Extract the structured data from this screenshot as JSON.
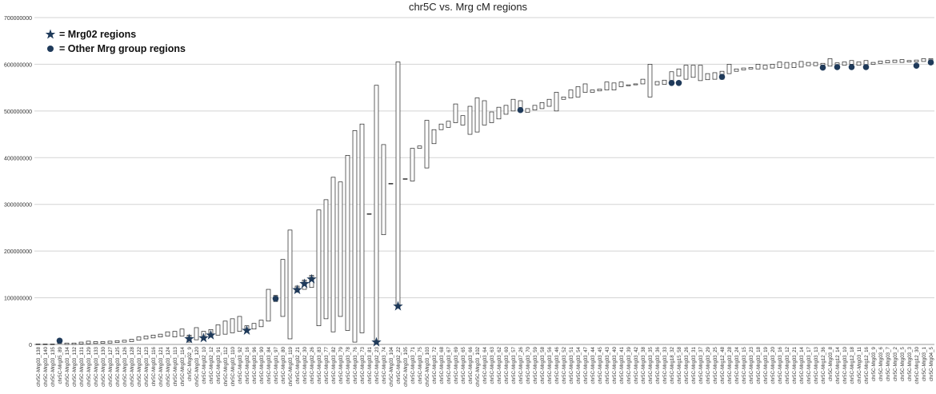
{
  "chart_data": {
    "type": "range",
    "title": "chr5C vs. Mrg cM regions",
    "xlabel": "",
    "ylabel": "",
    "ylim": [
      0,
      700000000
    ],
    "y_ticks": [
      "0",
      "100000000",
      "200000000",
      "300000000",
      "400000000",
      "500000000",
      "600000000",
      "700000000"
    ],
    "grid": true,
    "legend_position": "top-left",
    "legend": [
      {
        "marker": "star",
        "label": "= Mrg02 regions",
        "color": "#1f3a5a"
      },
      {
        "marker": "dot",
        "label": "= Other Mrg group regions",
        "color": "#1f3a5a"
      }
    ],
    "categories": [
      "chr5C-Mrg03_138",
      "chr5C-Mrg03_140",
      "chr5C-Mrg03_135",
      "chr5C-Mrg05_89",
      "chr5C-Mrg03_134",
      "chr5C-Mrg03_132",
      "chr5C-Mrg03_131",
      "chr5C-Mrg03_129",
      "chr5C-Mrg03_133",
      "chr5C-Mrg03_130",
      "chr5C-Mrg03_127",
      "chr5C-Mrg03_125",
      "chr5C-Mrg03_126",
      "chr5C-Mrg03_128",
      "chr5C-Mrg03_122",
      "chr5C-Mrg03_123",
      "chr5C-Mrg03_116",
      "chr5C-Mrg03_121",
      "chr5C-Mrg03_124",
      "chr5C-Mrg03_113",
      "chr5C-Mrg03_114",
      "chr5C-Mrg02_9",
      "chr5C-Mrg03_120",
      "chr5C-Mrg02_10",
      "chr5C-Mrg02_12",
      "chr5C-Mrg03_91",
      "chr5C-Mrg03_112",
      "chr5C-Mrg03_110",
      "chr5C-Mrg03_92",
      "chr5C-Mrg02_16",
      "chr5C-Mrg03_96",
      "chr5C-Mrg03_90",
      "chr5C-Mrg03_84",
      "chr5C-Mrg01_97",
      "chr5C-Mrg03_80",
      "chr5C-Mrg03_119",
      "chr5C-Mrg02_21",
      "chr5C-Mrg02_30",
      "chr5C-Mrg02_26",
      "chr5C-Mrg03_83",
      "chr5C-Mrg03_77",
      "chr5C-Mrg03_82",
      "chr5C-Mrg03_79",
      "chr5C-Mrg03_78",
      "chr5C-Mrg03_76",
      "chr5C-Mrg03_73",
      "chr5C-Mrg03_81",
      "chr5C-Mrg02_23",
      "chr5C-Mrg03_74",
      "chr5C-Mrg03_104",
      "chr5C-Mrg02_22",
      "chr5C-Mrg03_105",
      "chr5C-Mrg03_71",
      "chr5C-Mrg03_75",
      "chr5C-Mrg03_103",
      "chr5C-Mrg03_72",
      "chr5C-Mrg03_68",
      "chr5C-Mrg03_67",
      "chr5C-Mrg03_69",
      "chr5C-Mrg03_65",
      "chr5C-Mrg03_66",
      "chr5C-Mrg03_102",
      "chr5C-Mrg03_64",
      "chr5C-Mrg03_63",
      "chr5C-Mrg03_62",
      "chr5C-Mrg03_60",
      "chr5C-Mrg03_57",
      "chr5C-Mrg07_26",
      "chr5C-Mrg03_70",
      "chr5C-Mrg03_59",
      "chr5C-Mrg03_58",
      "chr5C-Mrg03_56",
      "chr5C-Mrg03_46",
      "chr5C-Mrg03_52",
      "chr5C-Mrg03_51",
      "chr5C-Mrg03_54",
      "chr5C-Mrg03_47",
      "chr5C-Mrg03_44",
      "chr5C-Mrg03_45",
      "chr5C-Mrg03_43",
      "chr5C-Mrg03_40",
      "chr5C-Mrg03_41",
      "chr5C-Mrg03_39",
      "chr5C-Mrg03_42",
      "chr5C-Mrg03_38",
      "chr5C-Mrg03_35",
      "chr5C-Mrg03_36",
      "chr5C-Mrg03_33",
      "chr5C-Mrg18_32",
      "chr5C-Mrg15_58",
      "chr5C-Mrg03_26",
      "chr5C-Mrg03_31",
      "chr5C-Mrg03_37",
      "chr5C-Mrg03_29",
      "chr5C-Mrg03_25",
      "chr5C-Mrg12_48",
      "chr5C-Mrg03_28",
      "chr5C-Mrg03_24",
      "chr5C-Mrg03_15",
      "chr5C-Mrg03_23",
      "chr5C-Mrg03_18",
      "chr5C-Mrg03_19",
      "chr5C-Mrg03_20",
      "chr5C-Mrg03_16",
      "chr5C-Mrg03_12",
      "chr5C-Mrg03_21",
      "chr5C-Mrg03_14",
      "chr5C-Mrg03_17",
      "chr5C-Mrg03_13",
      "chr5C-Mrg12_36",
      "chr5C-Mrg03_8",
      "chr5C-Mrg12_14",
      "chr5C-Mrg03_10",
      "chr5C-Mrg12_18",
      "chr5C-Mrg03_11",
      "chr5C-Mrg12_16",
      "chr5C-Mrg03_9",
      "chr5C-Mrg03_6",
      "chr5C-Mrg03_7",
      "chr5C-Mrg03_2",
      "chr5C-Mrg03_5",
      "chr5C-Mrg03_3",
      "chr5C-Mrg12_30",
      "chr5C-Mrg03_1",
      "chr5C-Mrg04_5"
    ],
    "series": [
      {
        "low": [
          0,
          0,
          0,
          2000000,
          0,
          0,
          1000000,
          1500000,
          2000000,
          2500000,
          3000000,
          4000000,
          5000000,
          6000000,
          9000000,
          12000000,
          14000000,
          16000000,
          18000000,
          16000000,
          18000000,
          5000000,
          10000000,
          12000000,
          17000000,
          20000000,
          22000000,
          25000000,
          28000000,
          30000000,
          33000000,
          38000000,
          50000000,
          92000000,
          60000000,
          12000000,
          112000000,
          118000000,
          122000000,
          40000000,
          55000000,
          27000000,
          60000000,
          30000000,
          5000000,
          25000000,
          280000000,
          2000000,
          235000000,
          345000000,
          80000000,
          355000000,
          350000000,
          420000000,
          378000000,
          430000000,
          460000000,
          465000000,
          475000000,
          470000000,
          450000000,
          455000000,
          470000000,
          475000000,
          483000000,
          493000000,
          500000000,
          498000000,
          497000000,
          502000000,
          505000000,
          510000000,
          500000000,
          525000000,
          528000000,
          530000000,
          540000000,
          540000000,
          543000000,
          545000000,
          545000000,
          552000000,
          554000000,
          556000000,
          558000000,
          530000000,
          556000000,
          557000000,
          565000000,
          575000000,
          568000000,
          572000000,
          565000000,
          567000000,
          568000000,
          568000000,
          580000000,
          585000000,
          588000000,
          590000000,
          590000000,
          590000000,
          592000000,
          593000000,
          592000000,
          593000000,
          594000000,
          597000000,
          597000000,
          598000000,
          596000000,
          598000000,
          598000000,
          600000000,
          598000000,
          599000000,
          600000000,
          602000000,
          603000000,
          604000000,
          604000000,
          605000000,
          605000000,
          606000000,
          607000000
        ],
        "high": [
          1000000,
          1000000,
          1000000,
          12000000,
          3000000,
          3000000,
          5000000,
          7000000,
          6000000,
          6000000,
          7000000,
          8000000,
          9000000,
          11000000,
          16000000,
          18000000,
          20000000,
          22000000,
          27000000,
          28000000,
          33000000,
          20000000,
          36000000,
          28000000,
          32000000,
          42000000,
          50000000,
          55000000,
          60000000,
          40000000,
          45000000,
          52000000,
          118000000,
          105000000,
          182000000,
          245000000,
          125000000,
          138000000,
          148000000,
          288000000,
          310000000,
          358000000,
          348000000,
          405000000,
          458000000,
          472000000,
          280000000,
          555000000,
          428000000,
          345000000,
          605000000,
          355000000,
          420000000,
          425000000,
          480000000,
          460000000,
          472000000,
          478000000,
          515000000,
          490000000,
          510000000,
          528000000,
          522000000,
          498000000,
          508000000,
          512000000,
          525000000,
          522000000,
          505000000,
          512000000,
          518000000,
          525000000,
          540000000,
          530000000,
          545000000,
          552000000,
          558000000,
          545000000,
          547000000,
          562000000,
          560000000,
          562000000,
          556000000,
          558000000,
          568000000,
          600000000,
          563000000,
          566000000,
          584000000,
          590000000,
          598000000,
          598000000,
          598000000,
          580000000,
          582000000,
          585000000,
          600000000,
          590000000,
          592000000,
          593000000,
          600000000,
          598000000,
          600000000,
          605000000,
          604000000,
          603000000,
          606000000,
          604000000,
          604000000,
          602000000,
          612000000,
          603000000,
          605000000,
          608000000,
          605000000,
          608000000,
          604000000,
          607000000,
          608000000,
          609000000,
          610000000,
          608000000,
          609000000,
          612000000,
          612000000
        ]
      }
    ],
    "markers": [
      {
        "category": "chr5C-Mrg05_89",
        "y": 8000000,
        "marker": "dot"
      },
      {
        "category": "chr5C-Mrg02_9",
        "y": 12000000,
        "marker": "star"
      },
      {
        "category": "chr5C-Mrg02_10",
        "y": 14000000,
        "marker": "star"
      },
      {
        "category": "chr5C-Mrg02_12",
        "y": 20000000,
        "marker": "star"
      },
      {
        "category": "chr5C-Mrg02_16",
        "y": 30000000,
        "marker": "star"
      },
      {
        "category": "chr5C-Mrg01_97",
        "y": 98000000,
        "marker": "dot"
      },
      {
        "category": "chr5C-Mrg02_21",
        "y": 117000000,
        "marker": "star"
      },
      {
        "category": "chr5C-Mrg02_30",
        "y": 130000000,
        "marker": "star"
      },
      {
        "category": "chr5C-Mrg02_26",
        "y": 140000000,
        "marker": "star"
      },
      {
        "category": "chr5C-Mrg02_23",
        "y": 5000000,
        "marker": "star"
      },
      {
        "category": "chr5C-Mrg02_22",
        "y": 82000000,
        "marker": "star"
      },
      {
        "category": "chr5C-Mrg07_26",
        "y": 502000000,
        "marker": "dot"
      },
      {
        "category": "chr5C-Mrg18_32",
        "y": 560000000,
        "marker": "dot"
      },
      {
        "category": "chr5C-Mrg15_58",
        "y": 560000000,
        "marker": "dot"
      },
      {
        "category": "chr5C-Mrg12_48",
        "y": 573000000,
        "marker": "dot"
      },
      {
        "category": "chr5C-Mrg12_36",
        "y": 593000000,
        "marker": "dot"
      },
      {
        "category": "chr5C-Mrg12_14",
        "y": 594000000,
        "marker": "dot"
      },
      {
        "category": "chr5C-Mrg12_18",
        "y": 594000000,
        "marker": "dot"
      },
      {
        "category": "chr5C-Mrg12_16",
        "y": 594000000,
        "marker": "dot"
      },
      {
        "category": "chr5C-Mrg12_30",
        "y": 597000000,
        "marker": "dot"
      },
      {
        "category": "chr5C-Mrg04_5",
        "y": 604000000,
        "marker": "dot"
      }
    ]
  }
}
